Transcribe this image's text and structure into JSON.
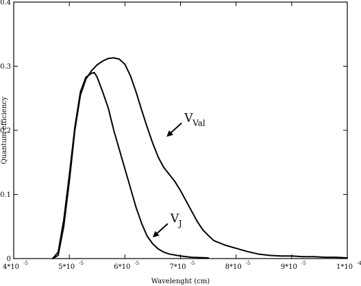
{
  "chart_data": {
    "type": "line",
    "xlabel": "Wavelenght (cm)",
    "ylabel": "Quantum efficiency",
    "xlim": [
      4e-05,
      0.0001
    ],
    "ylim": [
      0,
      0.4
    ],
    "grid": false,
    "x_ticks": [
      {
        "value": 4e-05,
        "mantissa": "4*10",
        "exp": "-5"
      },
      {
        "value": 5e-05,
        "mantissa": "5*10",
        "exp": "-5"
      },
      {
        "value": 6e-05,
        "mantissa": "6*10",
        "exp": "-5"
      },
      {
        "value": 7e-05,
        "mantissa": "7*10",
        "exp": "-5"
      },
      {
        "value": 8e-05,
        "mantissa": "8*10",
        "exp": "-5"
      },
      {
        "value": 9e-05,
        "mantissa": "9*10",
        "exp": "-5"
      },
      {
        "value": 0.0001,
        "mantissa": "1*10",
        "exp": "-4"
      }
    ],
    "y_ticks": [
      {
        "value": 0,
        "label": "0"
      },
      {
        "value": 0.1,
        "label": "0.1"
      },
      {
        "value": 0.2,
        "label": "0.2"
      },
      {
        "value": 0.3,
        "label": "0.3"
      },
      {
        "value": 0.4,
        "label": "0.4"
      }
    ],
    "series": [
      {
        "name": "V_Val",
        "annotation": {
          "main": "V",
          "sub": "Val",
          "arrow_to": [
            6.75e-05,
            0.19
          ]
        },
        "x": [
          4.7e-05,
          4.8e-05,
          4.9e-05,
          5e-05,
          5.1e-05,
          5.2e-05,
          5.3e-05,
          5.4e-05,
          5.5e-05,
          5.6e-05,
          5.7e-05,
          5.8e-05,
          5.9e-05,
          6e-05,
          6.1e-05,
          6.2e-05,
          6.3e-05,
          6.4e-05,
          6.5e-05,
          6.6e-05,
          6.7e-05,
          6.8e-05,
          6.9e-05,
          7e-05,
          7.1e-05,
          7.2e-05,
          7.3e-05,
          7.4e-05,
          7.5e-05,
          7.6e-05,
          7.8e-05,
          8e-05,
          8.2e-05,
          8.4e-05,
          8.6e-05,
          8.8e-05,
          9e-05,
          9.2e-05,
          9.4e-05,
          9.6e-05,
          9.8e-05,
          0.0001
        ],
        "y": [
          0.0,
          0.005,
          0.05,
          0.12,
          0.2,
          0.255,
          0.28,
          0.293,
          0.302,
          0.308,
          0.312,
          0.313,
          0.311,
          0.303,
          0.285,
          0.26,
          0.232,
          0.205,
          0.18,
          0.158,
          0.142,
          0.131,
          0.12,
          0.106,
          0.09,
          0.074,
          0.058,
          0.045,
          0.036,
          0.028,
          0.021,
          0.016,
          0.011,
          0.007,
          0.005,
          0.004,
          0.004,
          0.003,
          0.003,
          0.002,
          0.002,
          0.001
        ]
      },
      {
        "name": "V_J",
        "annotation": {
          "main": "V",
          "sub": "J",
          "arrow_to": [
            6.5e-05,
            0.033
          ]
        },
        "x": [
          4.7e-05,
          4.8e-05,
          4.9e-05,
          5e-05,
          5.1e-05,
          5.2e-05,
          5.3e-05,
          5.4e-05,
          5.45e-05,
          5.5e-05,
          5.6e-05,
          5.7e-05,
          5.8e-05,
          5.9e-05,
          6e-05,
          6.1e-05,
          6.2e-05,
          6.3e-05,
          6.4e-05,
          6.5e-05,
          6.6e-05,
          6.7e-05,
          6.8e-05,
          7e-05,
          7.2e-05,
          7.5e-05
        ],
        "y": [
          0.0,
          0.01,
          0.06,
          0.13,
          0.205,
          0.26,
          0.283,
          0.289,
          0.29,
          0.283,
          0.26,
          0.235,
          0.2,
          0.17,
          0.14,
          0.11,
          0.08,
          0.055,
          0.035,
          0.023,
          0.015,
          0.01,
          0.007,
          0.004,
          0.002,
          0.001
        ]
      }
    ]
  }
}
